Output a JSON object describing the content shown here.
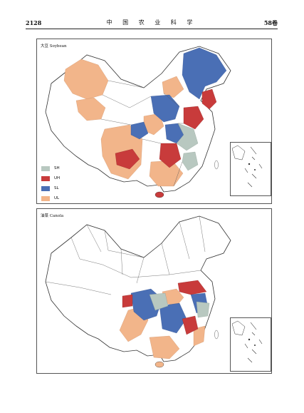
{
  "header": {
    "page_number": "2128",
    "journal": "中 国 农 业 科 学",
    "volume": "58卷"
  },
  "panels": [
    {
      "label": "大豆 Soybean"
    },
    {
      "label": "油菜 Canola"
    }
  ],
  "legend": [
    {
      "code": "SH",
      "color": "#b8c8c0"
    },
    {
      "code": "UH",
      "color": "#c83b3b"
    },
    {
      "code": "SL",
      "color": "#4a6fb5"
    },
    {
      "code": "UL",
      "color": "#f2b58a"
    }
  ]
}
